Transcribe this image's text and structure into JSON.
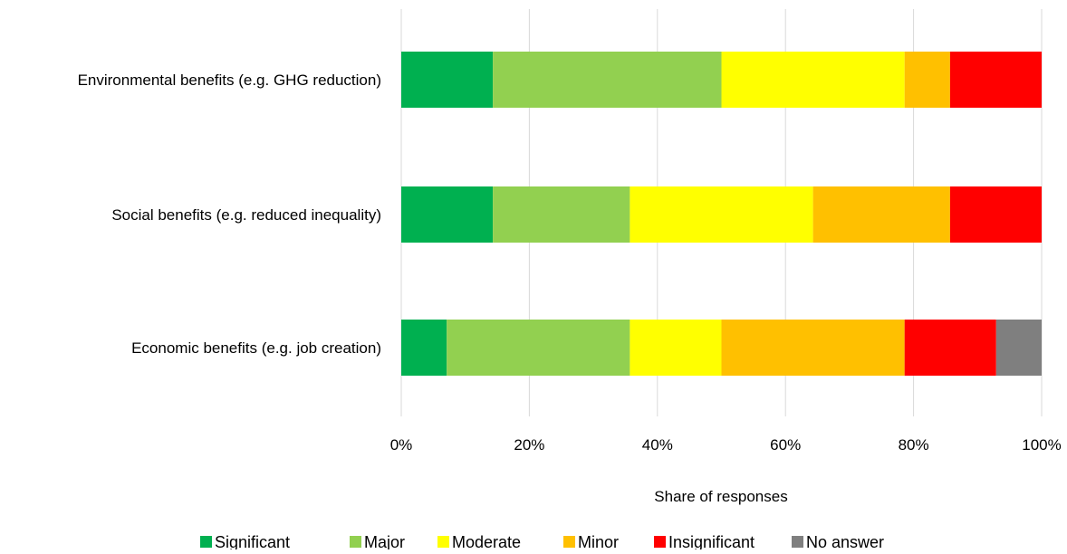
{
  "chart_data": {
    "type": "bar",
    "orientation": "horizontal",
    "stacked": true,
    "categories": [
      "Environmental benefits (e.g. GHG reduction)",
      "Social benefits (e.g. reduced inequality)",
      "Economic benefits (e.g. job creation)"
    ],
    "series": [
      {
        "name": "Significant",
        "color": "#00b050",
        "values": [
          14.3,
          14.3,
          7.1
        ]
      },
      {
        "name": "Major",
        "color": "#92d050",
        "values": [
          35.7,
          21.4,
          28.6
        ]
      },
      {
        "name": "Moderate",
        "color": "#ffff00",
        "values": [
          28.6,
          28.6,
          14.3
        ]
      },
      {
        "name": "Minor",
        "color": "#ffc000",
        "values": [
          7.1,
          21.4,
          28.6
        ]
      },
      {
        "name": "Insignificant",
        "color": "#ff0000",
        "values": [
          14.3,
          14.3,
          14.3
        ]
      },
      {
        "name": "No answer",
        "color": "#7f7f7f",
        "values": [
          0,
          0,
          7.1
        ]
      }
    ],
    "xlabel": "Share of responses",
    "ylabel": "",
    "xlim": [
      0,
      100
    ],
    "xticks": [
      "0%",
      "20%",
      "40%",
      "60%",
      "80%",
      "100%"
    ],
    "grid": "vertical",
    "legend_position": "bottom"
  }
}
